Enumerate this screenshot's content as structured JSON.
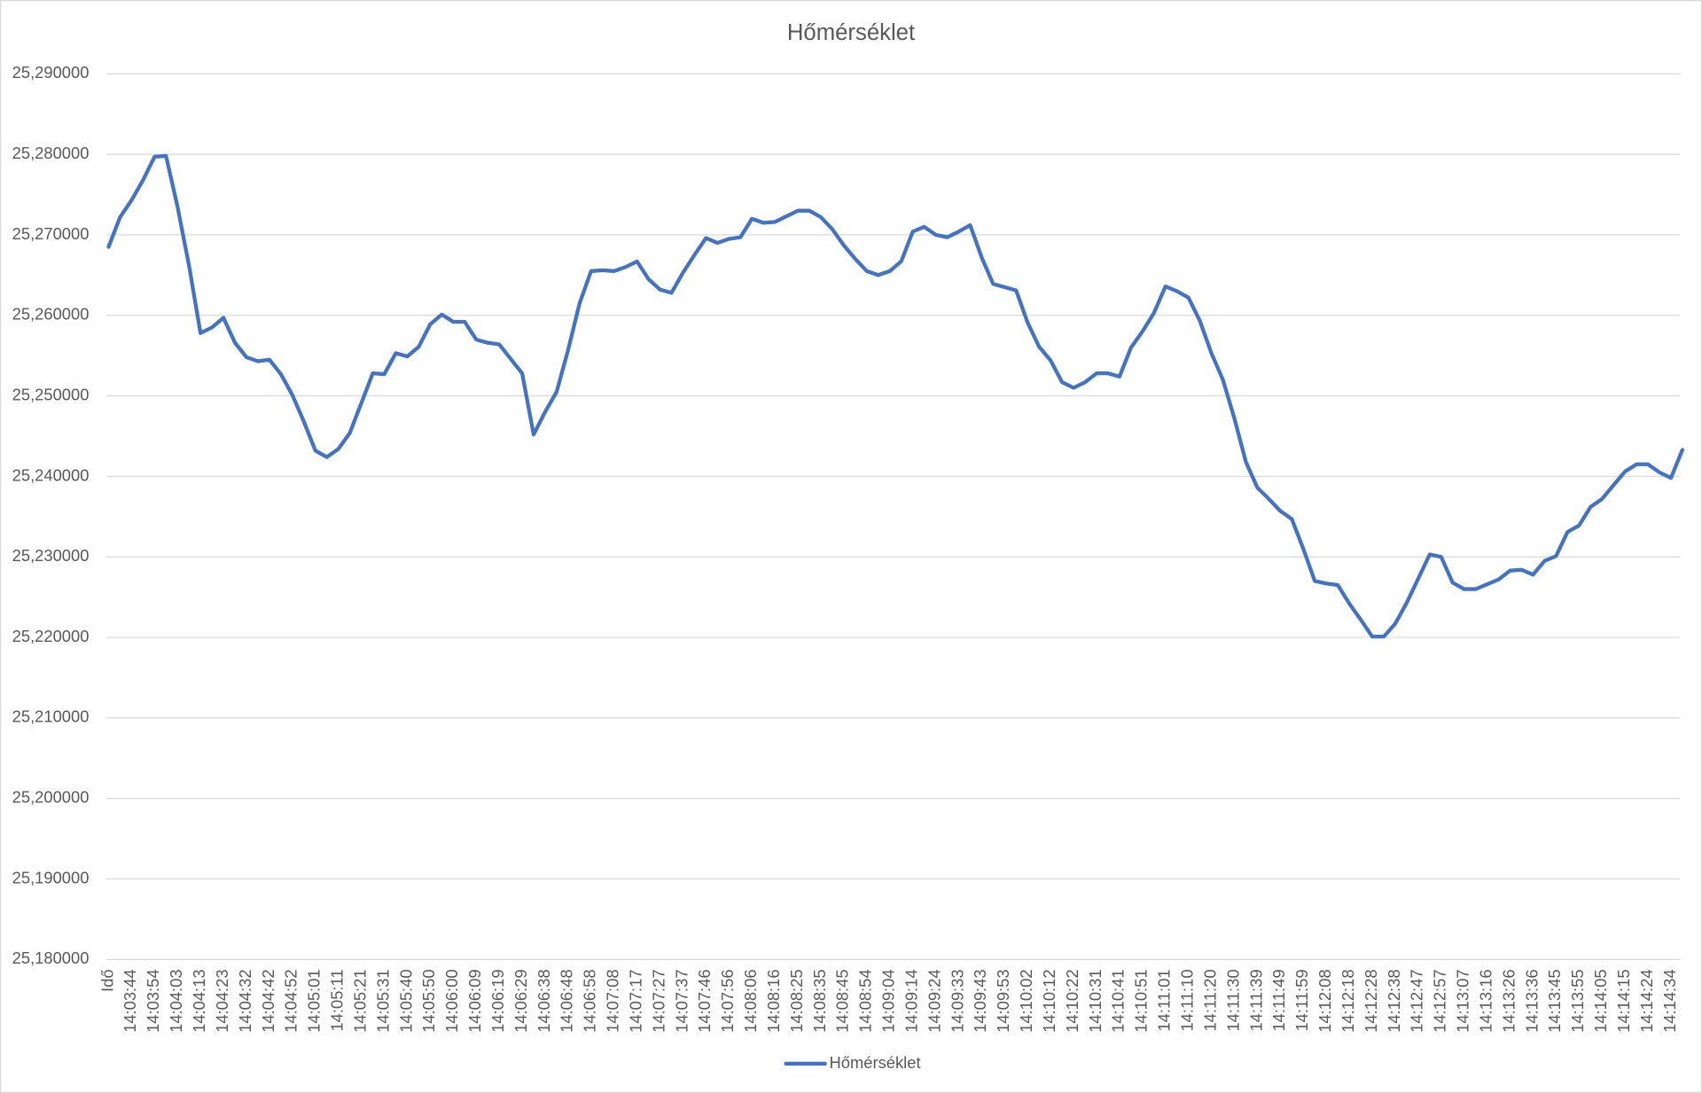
{
  "chart_data": {
    "type": "line",
    "title": "Hőmérséklet",
    "categories": [
      "Idő",
      null,
      "14:03:44",
      null,
      "14:03:54",
      null,
      "14:04:03",
      null,
      "14:04:13",
      null,
      "14:04:23",
      null,
      "14:04:32",
      null,
      "14:04:42",
      null,
      "14:04:52",
      null,
      "14:05:01",
      null,
      "14:05:11",
      null,
      "14:05:21",
      null,
      "14:05:31",
      null,
      "14:05:40",
      null,
      "14:05:50",
      null,
      "14:06:00",
      null,
      "14:06:09",
      null,
      "14:06:19",
      null,
      "14:06:29",
      null,
      "14:06:38",
      null,
      "14:06:48",
      null,
      "14:06:58",
      null,
      "14:07:08",
      null,
      "14:07:17",
      null,
      "14:07:27",
      null,
      "14:07:37",
      null,
      "14:07:46",
      null,
      "14:07:56",
      null,
      "14:08:06",
      null,
      "14:08:16",
      null,
      "14:08:25",
      null,
      "14:08:35",
      null,
      "14:08:45",
      null,
      "14:08:54",
      null,
      "14:09:04",
      null,
      "14:09:14",
      null,
      "14:09:24",
      null,
      "14:09:33",
      null,
      "14:09:43",
      null,
      "14:09:53",
      null,
      "14:10:02",
      null,
      "14:10:12",
      null,
      "14:10:22",
      null,
      "14:10:31",
      null,
      "14:10:41",
      null,
      "14:10:51",
      null,
      "14:11:01",
      null,
      "14:11:10",
      null,
      "14:11:20",
      null,
      "14:11:30",
      null,
      "14:11:39",
      null,
      "14:11:49",
      null,
      "14:11:59",
      null,
      "14:12:08",
      null,
      "14:12:18",
      null,
      "14:12:28",
      null,
      "14:12:38",
      null,
      "14:12:47",
      null,
      "14:12:57",
      null,
      "14:13:07",
      null,
      "14:13:16",
      null,
      "14:13:26",
      null,
      "14:13:36",
      null,
      "14:13:45",
      null,
      "14:13:55",
      null,
      "14:14:05",
      null,
      "14:14:15",
      null,
      "14:14:24",
      null,
      "14:14:34",
      null
    ],
    "series": [
      {
        "name": "Hőmérséklet",
        "color": "#4472c4",
        "values": [
          25.2685,
          25.2722,
          25.2743,
          25.2768,
          25.2797,
          25.2798,
          25.2735,
          25.2662,
          25.2578,
          25.2585,
          25.2597,
          25.2566,
          25.2548,
          25.2543,
          25.2545,
          25.2527,
          25.2501,
          25.2468,
          25.2432,
          25.2424,
          25.2434,
          25.2454,
          25.2491,
          25.2528,
          25.2527,
          25.2553,
          25.2549,
          25.2561,
          25.2589,
          25.2601,
          25.2592,
          25.2592,
          25.257,
          25.2566,
          25.2564,
          25.2546,
          25.2528,
          25.2452,
          25.248,
          25.2505,
          25.2557,
          25.2615,
          25.2655,
          25.2656,
          25.2655,
          25.266,
          25.2667,
          25.2645,
          25.2632,
          25.2628,
          25.2653,
          25.2675,
          25.2696,
          25.269,
          25.2695,
          25.2697,
          25.272,
          25.2715,
          25.2716,
          25.2723,
          25.273,
          25.273,
          25.2722,
          25.2707,
          25.2687,
          25.267,
          25.2655,
          25.265,
          25.2655,
          25.2667,
          25.2704,
          25.271,
          25.27,
          25.2697,
          25.2704,
          25.2712,
          25.2672,
          25.2639,
          25.2635,
          25.2631,
          25.2591,
          25.2561,
          25.2544,
          25.2517,
          25.251,
          25.2517,
          25.2528,
          25.2528,
          25.2524,
          25.256,
          25.258,
          25.2603,
          25.2636,
          25.263,
          25.2622,
          25.2593,
          25.2553,
          25.252,
          25.2472,
          25.2418,
          25.2386,
          25.2372,
          25.2357,
          25.2347,
          25.231,
          25.227,
          25.2267,
          25.2265,
          25.2242,
          25.2222,
          25.2201,
          25.2201,
          25.2217,
          25.2243,
          25.2273,
          25.2303,
          25.23,
          25.2268,
          25.226,
          25.226,
          25.2266,
          25.2272,
          25.2283,
          25.2284,
          25.2278,
          25.2295,
          25.2301,
          25.2331,
          25.2339,
          25.2362,
          25.2372,
          25.2389,
          25.2406,
          25.2415,
          25.2415,
          25.2405,
          25.2398,
          25.2433
        ]
      }
    ],
    "ylim": [
      25.18,
      25.29
    ],
    "yticks": [
      {
        "value": 25.18,
        "label": "25,180000"
      },
      {
        "value": 25.19,
        "label": "25,190000"
      },
      {
        "value": 25.2,
        "label": "25,200000"
      },
      {
        "value": 25.21,
        "label": "25,210000"
      },
      {
        "value": 25.22,
        "label": "25,220000"
      },
      {
        "value": 25.23,
        "label": "25,230000"
      },
      {
        "value": 25.24,
        "label": "25,240000"
      },
      {
        "value": 25.25,
        "label": "25,250000"
      },
      {
        "value": 25.26,
        "label": "25,260000"
      },
      {
        "value": 25.27,
        "label": "25,270000"
      },
      {
        "value": 25.28,
        "label": "25,280000"
      },
      {
        "value": 25.29,
        "label": "25,290000"
      }
    ],
    "grid": true,
    "legend": "bottom"
  }
}
